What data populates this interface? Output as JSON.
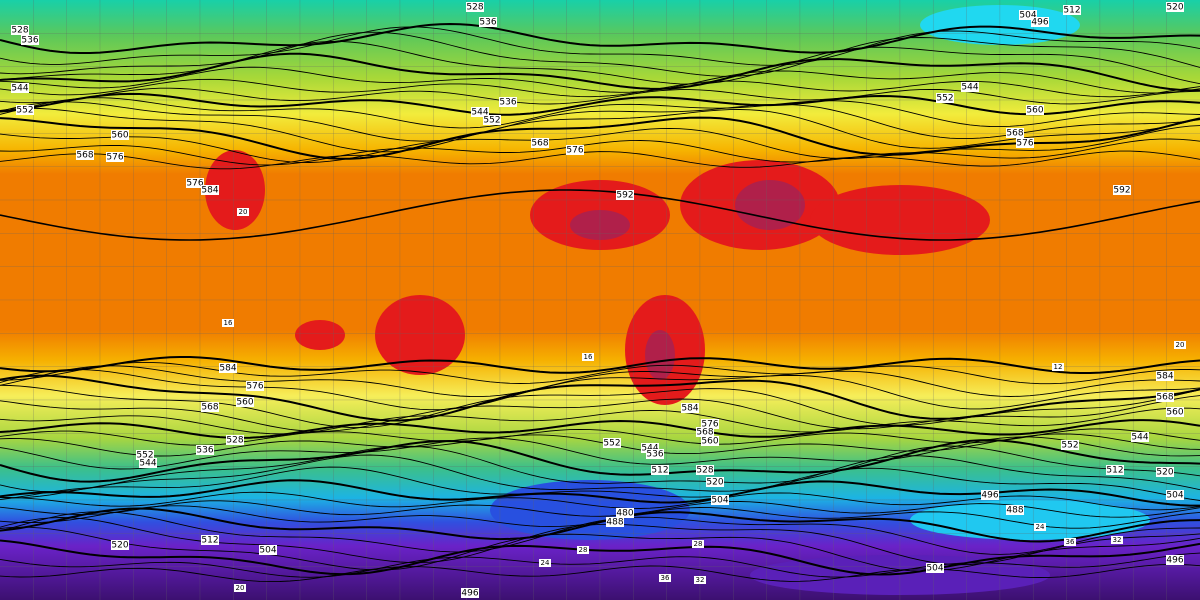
{
  "map": {
    "contour_labels": [
      528,
      536,
      528,
      536,
      504,
      496,
      512,
      520,
      544,
      552,
      560,
      568,
      576,
      576,
      584,
      544,
      552,
      536,
      568,
      576,
      592,
      552,
      544,
      560,
      568,
      576,
      592,
      584,
      576,
      568,
      560,
      552,
      544,
      536,
      528,
      584,
      576,
      568,
      560,
      552,
      544,
      536,
      512,
      528,
      520,
      504,
      480,
      488,
      496,
      488,
      504,
      512,
      520,
      504,
      496,
      584,
      568,
      560,
      552,
      544,
      520,
      512,
      504,
      496
    ],
    "temperature_labels": [
      16,
      20,
      12,
      16,
      20,
      24,
      28,
      32,
      36,
      36,
      32,
      28,
      24,
      20
    ]
  }
}
